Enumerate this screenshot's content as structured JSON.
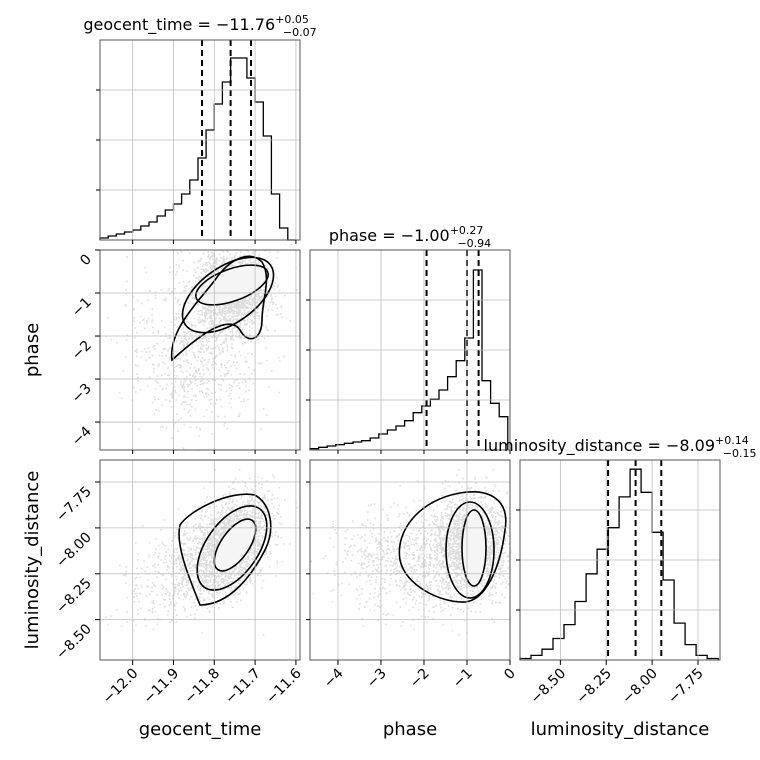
{
  "chart_data": {
    "type": "corner",
    "parameters": [
      "geocent_time",
      "phase",
      "luminosity_distance"
    ],
    "ranges": [
      [
        -12.08,
        -11.59
      ],
      [
        -4.65,
        0.0
      ],
      [
        -8.72,
        -7.63
      ]
    ],
    "ticks": [
      [
        "−12.0",
        "−11.9",
        "−11.8",
        "−11.7",
        "−11.6"
      ],
      [
        "−4",
        "−3",
        "−2",
        "−1",
        "0"
      ],
      [
        "−8.50",
        "−8.25",
        "−8.00",
        "−7.75"
      ]
    ],
    "tick_values": [
      [
        -12.0,
        -11.9,
        -11.8,
        -11.7,
        -11.6
      ],
      [
        -4,
        -3,
        -2,
        -1,
        0
      ],
      [
        -8.5,
        -8.25,
        -8.0,
        -7.75
      ]
    ],
    "titles": [
      {
        "name": "geocent_time",
        "median": "−11.76",
        "plus": "+0.05",
        "minus": "−0.07"
      },
      {
        "name": "phase",
        "median": "−1.00",
        "plus": "+0.27",
        "minus": "−0.94"
      },
      {
        "name": "luminosity_distance",
        "median": "−8.09",
        "plus": "+0.14",
        "minus": "−0.15"
      }
    ],
    "quantiles": [
      [
        -11.83,
        -11.76,
        -11.71
      ],
      [
        -1.94,
        -1.0,
        -0.73
      ],
      [
        -8.24,
        -8.09,
        -7.95
      ]
    ],
    "histograms": [
      {
        "bins": [
          -12.08,
          -12.06,
          -12.04,
          -12.02,
          -12.0,
          -11.98,
          -11.96,
          -11.94,
          -11.92,
          -11.9,
          -11.88,
          -11.86,
          -11.84,
          -11.82,
          -11.8,
          -11.78,
          -11.76,
          -11.74,
          -11.72,
          -11.7,
          -11.68,
          -11.66,
          -11.64,
          -11.62,
          -11.6
        ],
        "counts": [
          1,
          2,
          3,
          4,
          5,
          7,
          9,
          12,
          15,
          18,
          23,
          30,
          41,
          55,
          68,
          79,
          91,
          91,
          81,
          69,
          52,
          23,
          6,
          0
        ],
        "ymax": 100
      },
      {
        "bins": [
          -4.65,
          -4.45,
          -4.25,
          -4.05,
          -3.85,
          -3.65,
          -3.45,
          -3.25,
          -3.05,
          -2.85,
          -2.65,
          -2.45,
          -2.25,
          -2.05,
          -1.85,
          -1.65,
          -1.45,
          -1.25,
          -1.05,
          -0.85,
          -0.65,
          -0.45,
          -0.25,
          -0.05
        ],
        "counts": [
          1,
          2,
          3,
          4,
          5,
          6,
          7,
          9,
          12,
          15,
          18,
          22,
          28,
          33,
          38,
          45,
          55,
          67,
          84,
          135,
          52,
          35,
          25
        ],
        "ymax": 150
      },
      {
        "bins": [
          -8.72,
          -8.66,
          -8.6,
          -8.54,
          -8.48,
          -8.42,
          -8.36,
          -8.3,
          -8.24,
          -8.18,
          -8.12,
          -8.06,
          -8.0,
          -7.94,
          -7.88,
          -7.82,
          -7.76,
          -7.7,
          -7.64
        ],
        "counts": [
          1,
          3,
          7,
          14,
          23,
          38,
          56,
          72,
          86,
          106,
          124,
          109,
          83,
          52,
          24,
          10,
          3,
          1
        ],
        "ymax": 130
      }
    ]
  }
}
